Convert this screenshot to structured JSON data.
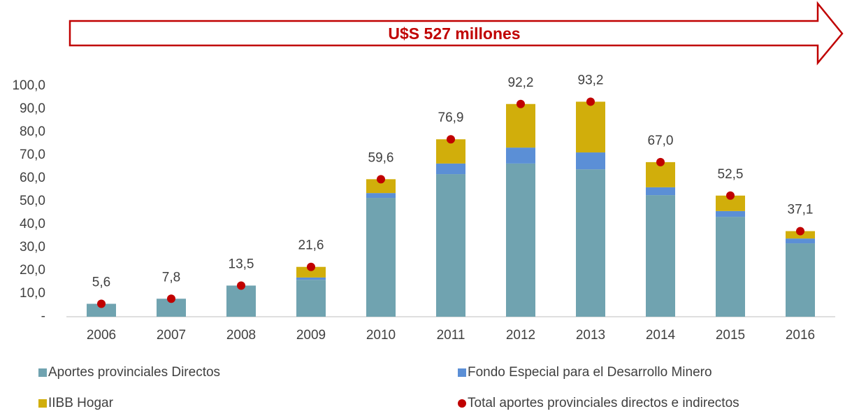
{
  "chart_data": {
    "type": "bar",
    "stacked": true,
    "annotation": "U$S 527 millones",
    "annotation_color": "#c00000",
    "categories": [
      "2006",
      "2007",
      "2008",
      "2009",
      "2010",
      "2011",
      "2012",
      "2013",
      "2014",
      "2015",
      "2016"
    ],
    "series": [
      {
        "name": "Aportes provinciales Directos",
        "color": "#70a3b0",
        "values": [
          5.6,
          7.8,
          13.5,
          16.0,
          51.5,
          61.8,
          66.4,
          63.9,
          52.7,
          43.3,
          31.8
        ]
      },
      {
        "name": "Fondo Especial para el Desarrollo Minero",
        "color": "#5b8fd6",
        "values": [
          0,
          0,
          0,
          1.0,
          2.1,
          4.6,
          6.9,
          7.3,
          3.4,
          2.5,
          2.1
        ]
      },
      {
        "name": "IIBB Hogar",
        "color": "#d1ae0b",
        "values": [
          0,
          0,
          0,
          4.6,
          6.0,
          10.5,
          18.9,
          22.0,
          10.9,
          6.7,
          3.2
        ]
      },
      {
        "name": "Total aportes provinciales directos e indirectos",
        "type": "scatter",
        "color": "#c00000",
        "values": [
          5.6,
          7.8,
          13.5,
          21.6,
          59.6,
          76.9,
          92.2,
          93.2,
          67.0,
          52.5,
          37.1
        ],
        "value_labels": [
          "5,6",
          "7,8",
          "13,5",
          "21,6",
          "59,6",
          "76,9",
          "92,2",
          "93,2",
          "67,0",
          "52,5",
          "37,1"
        ]
      }
    ],
    "ylim": [
      0,
      100
    ],
    "yticks": [
      {
        "value": 0,
        "label": "-"
      },
      {
        "value": 10,
        "label": "10,0"
      },
      {
        "value": 20,
        "label": "20,0"
      },
      {
        "value": 30,
        "label": "30,0"
      },
      {
        "value": 40,
        "label": "40,0"
      },
      {
        "value": 50,
        "label": "50,0"
      },
      {
        "value": 60,
        "label": "60,0"
      },
      {
        "value": 70,
        "label": "70,0"
      },
      {
        "value": 80,
        "label": "80,0"
      },
      {
        "value": 90,
        "label": "90,0"
      },
      {
        "value": 100,
        "label": "100,0"
      }
    ],
    "grid": false
  }
}
